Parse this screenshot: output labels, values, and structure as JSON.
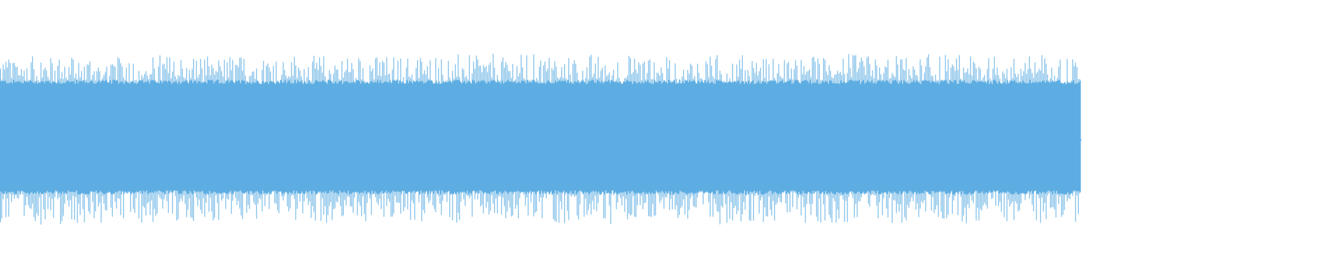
{
  "waveform": {
    "wave_color": "#5dade2",
    "background_color": "#ffffff",
    "played_fraction": 0
  }
}
